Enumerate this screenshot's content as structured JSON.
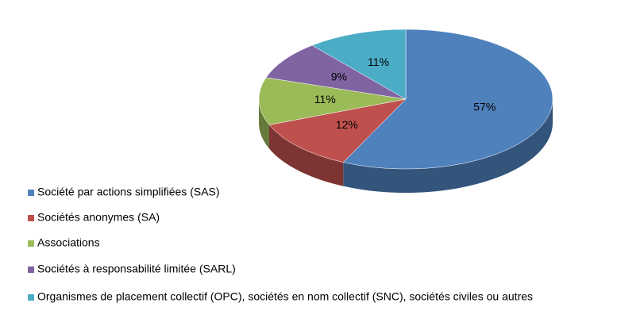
{
  "chart_data": {
    "type": "pie",
    "categories": [
      "Société par actions simplifiées (SAS)",
      "Sociétés anonymes (SA)",
      "Associations",
      "Sociétés à responsabilité limitée (SARL)",
      "Organismes de placement collectif (OPC), sociétés en nom collectif (SNC), sociétés civiles ou autres"
    ],
    "values": [
      57,
      12,
      11,
      9,
      11
    ],
    "value_labels": [
      "57%",
      "12%",
      "11%",
      "9%",
      "11%"
    ],
    "colors": [
      "#4f81bd",
      "#c0504d",
      "#9bbb59",
      "#8064a2",
      "#4bacc6"
    ],
    "legend": "bottom-left"
  }
}
